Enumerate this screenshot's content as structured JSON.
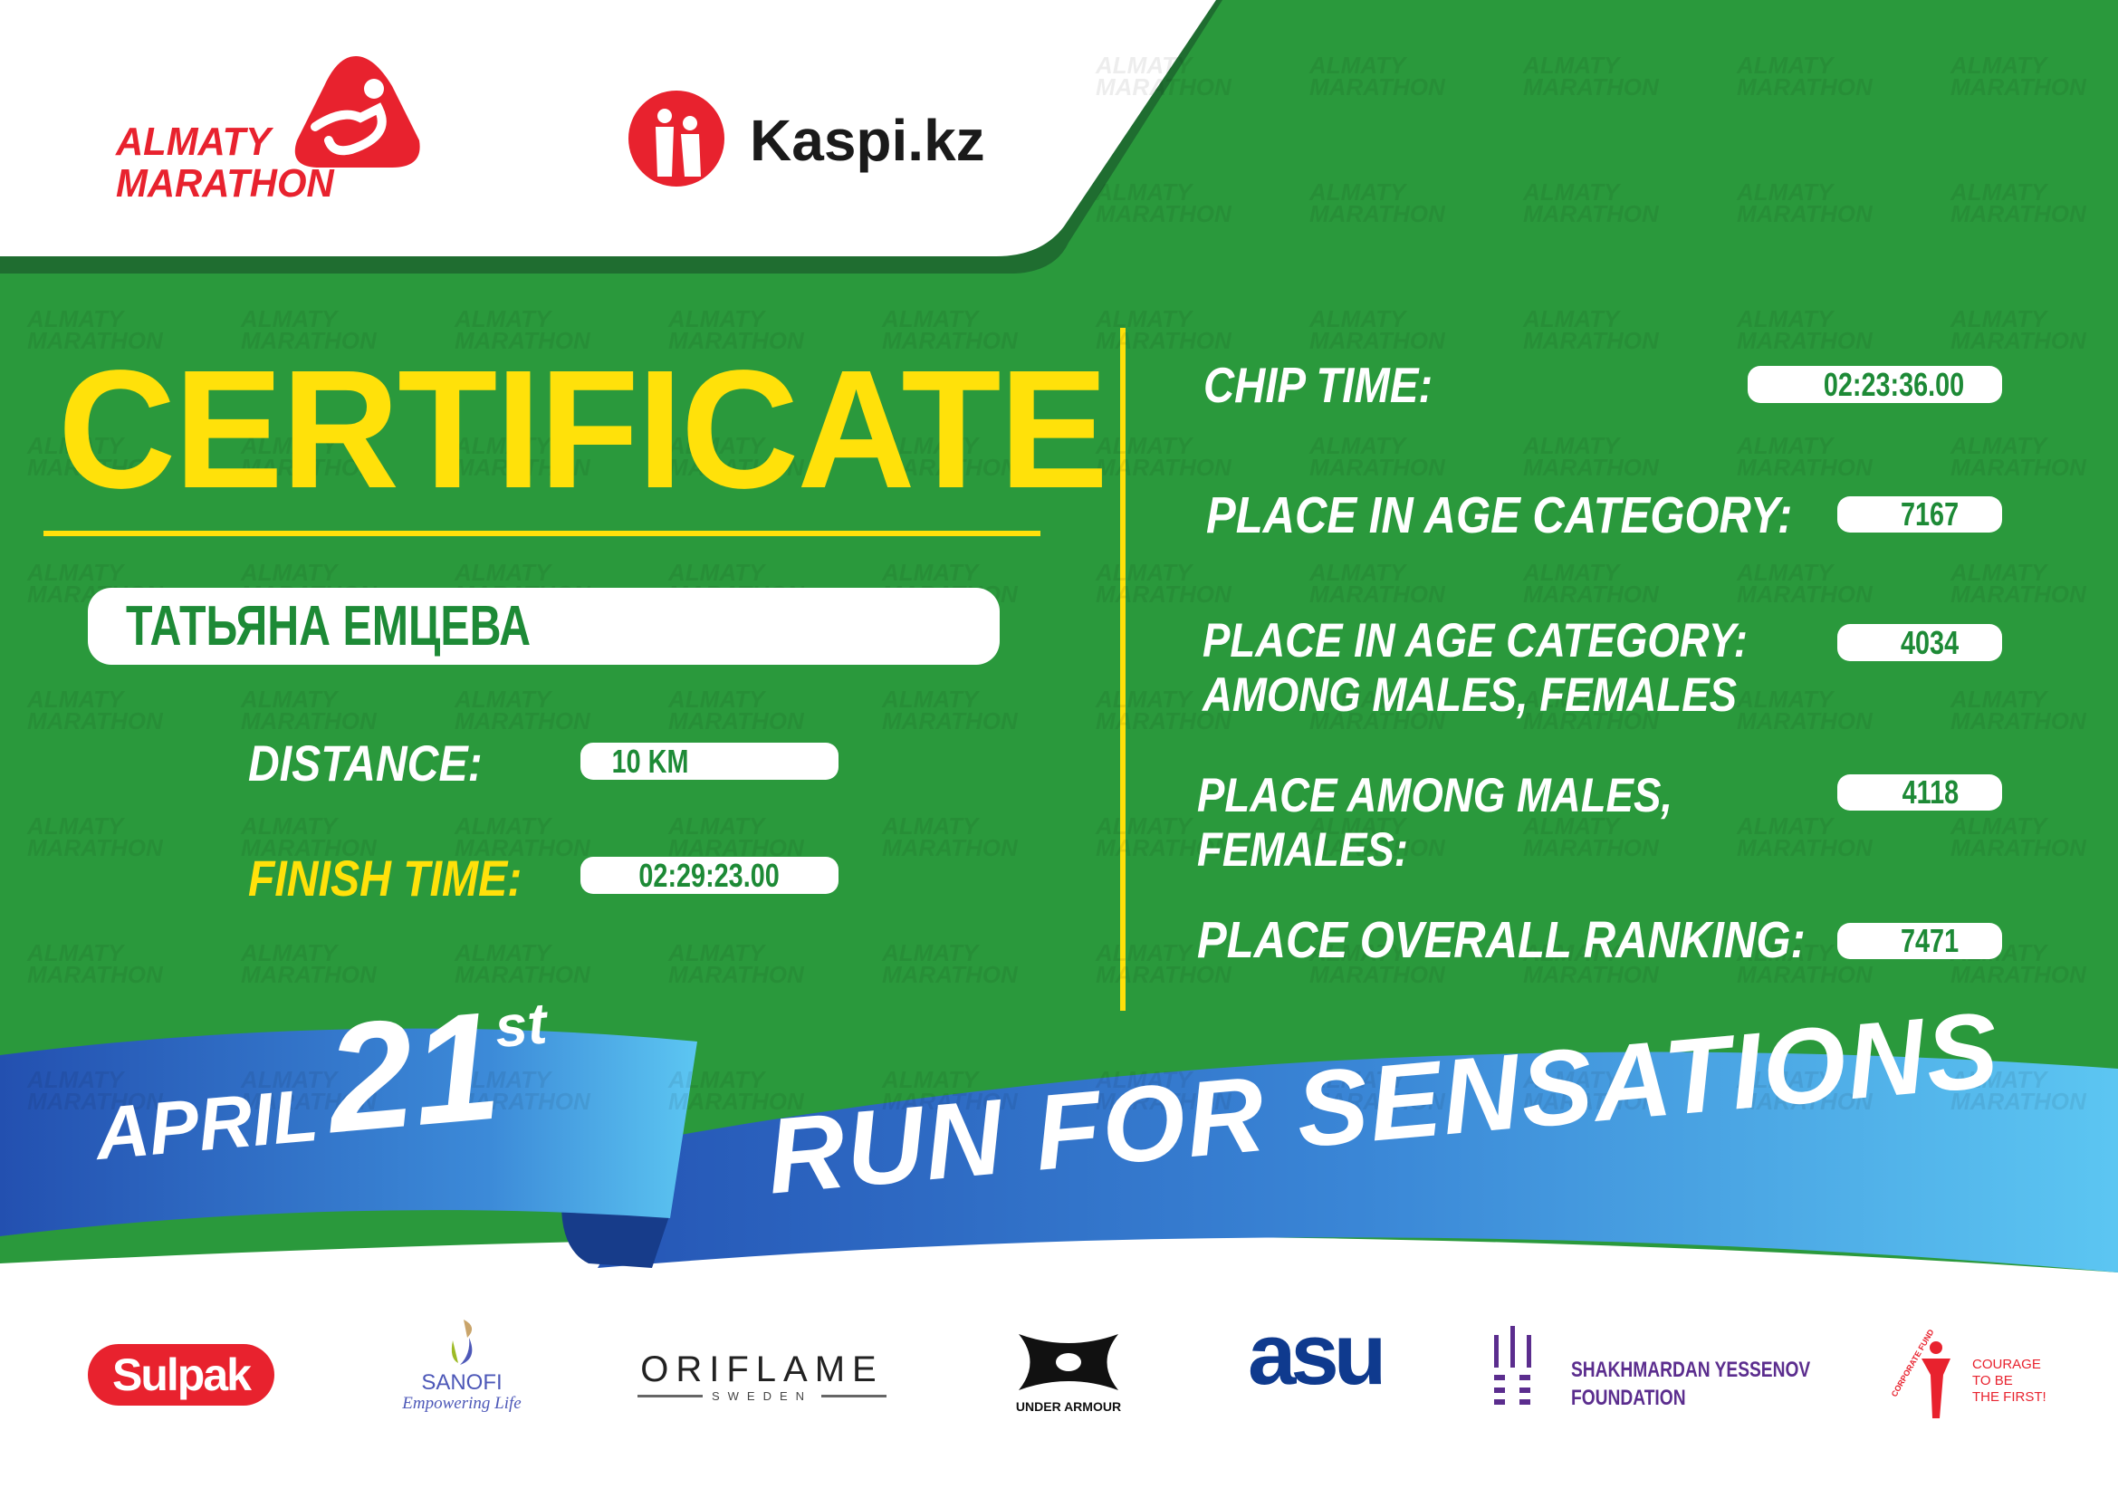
{
  "header": {
    "event_logo_line1": "ALMATY",
    "event_logo_line2": "MARATHON",
    "sponsor_logo": "Kaspi.kz"
  },
  "certificate": {
    "title": "CERTIFICATE",
    "participant_name": "ТАТЬЯНА ЕМЦЕВА",
    "distance_label": "DISTANCE:",
    "distance_value": "10 KM",
    "finish_time_label": "FINISH TIME:",
    "finish_time_value": "02:29:23.00"
  },
  "results": {
    "chip_time_label": "CHIP TIME:",
    "chip_time_value": "02:23:36.00",
    "age_category_label": "PLACE IN AGE CATEGORY:",
    "age_category_value": "7167",
    "age_category_gender_label_1": "PLACE IN AGE CATEGORY:",
    "age_category_gender_label_2": "AMONG MALES, FEMALES",
    "age_category_gender_value": "4034",
    "gender_label_1": "PLACE AMONG MALES,",
    "gender_label_2": "FEMALES:",
    "gender_value": "4118",
    "overall_label": "PLACE OVERALL RANKING:",
    "overall_value": "7471"
  },
  "banner": {
    "month": "APRIL",
    "day": "21",
    "day_suffix": "st",
    "slogan": "RUN FOR SENSATIONS"
  },
  "sponsors": {
    "sulpak": "Sulpak",
    "sanofi": "SANOFI",
    "sanofi_tagline": "Empowering Life",
    "oriflame": "ORIFLAME",
    "oriflame_sub": "SWEDEN",
    "under_armour": "UNDER ARMOUR",
    "asu": "asu",
    "yessenov_1": "SHAKHMARDAN YESSENOV",
    "yessenov_2": "FOUNDATION",
    "courage_fund": "CORPORATE FUND",
    "courage_1": "COURAGE",
    "courage_2": "TO BE",
    "courage_3": "THE FIRST!"
  },
  "colors": {
    "green": "#2a993c",
    "yellow": "#ffe10a",
    "red": "#e8222e",
    "blue": "#2f6cc8",
    "light_blue": "#58c2f0"
  }
}
